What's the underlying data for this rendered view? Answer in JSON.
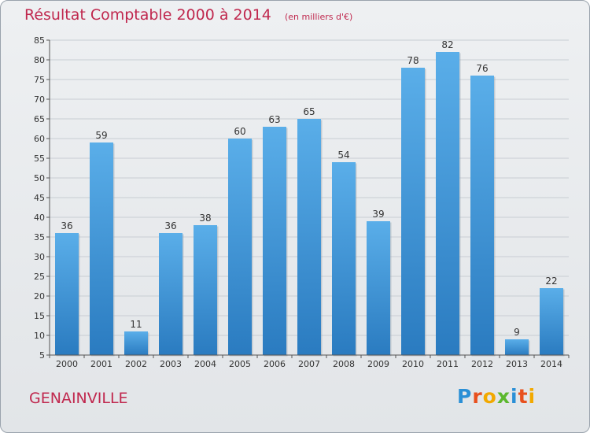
{
  "chart_data": {
    "type": "bar",
    "title": "Résultat Comptable 2000 à 2014",
    "subtitle": "(en milliers d'€)",
    "categories": [
      "2000",
      "2001",
      "2002",
      "2003",
      "2004",
      "2005",
      "2006",
      "2007",
      "2008",
      "2009",
      "2010",
      "2011",
      "2012",
      "2013",
      "2014"
    ],
    "values": [
      36,
      59,
      11,
      36,
      38,
      60,
      63,
      65,
      54,
      39,
      78,
      82,
      76,
      9,
      22
    ],
    "ylim": [
      5,
      85
    ],
    "yticks": [
      5,
      10,
      15,
      20,
      25,
      30,
      35,
      40,
      45,
      50,
      55,
      60,
      65,
      70,
      75,
      80,
      85
    ],
    "grid": true,
    "legend": "none"
  },
  "footer": {
    "commune": "GENAINVILLE",
    "logo": "Proxiti"
  },
  "colors": {
    "title": "#c0284e",
    "bar_top": "#5aaee9",
    "bar_bottom": "#2a7bc0",
    "grid": "#c8cdd3"
  }
}
